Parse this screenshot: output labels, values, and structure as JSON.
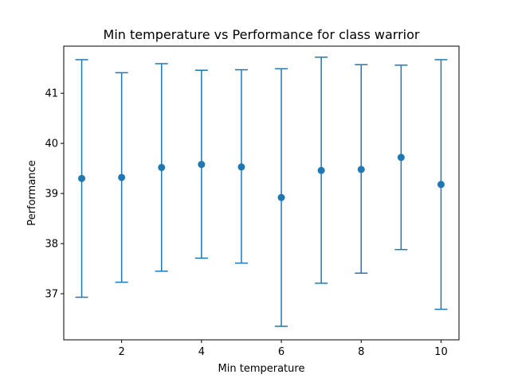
{
  "chart_data": {
    "type": "scatter",
    "title": "Min temperature vs Performance for class warrior",
    "xlabel": "Min temperature",
    "ylabel": "Performance",
    "x": [
      1,
      2,
      3,
      4,
      5,
      6,
      7,
      8,
      9,
      10
    ],
    "y": [
      39.3,
      39.32,
      39.52,
      39.58,
      39.53,
      38.92,
      39.46,
      39.48,
      39.72,
      39.18
    ],
    "yerr_low": [
      36.93,
      37.23,
      37.45,
      37.71,
      37.61,
      36.35,
      37.21,
      37.41,
      37.88,
      36.69
    ],
    "yerr_high": [
      41.67,
      41.41,
      41.59,
      41.46,
      41.47,
      41.49,
      41.72,
      41.57,
      41.56,
      41.67
    ],
    "xlim": [
      0.55,
      10.45
    ],
    "ylim": [
      36.08,
      41.94
    ],
    "xticks": [
      2,
      4,
      6,
      8,
      10
    ],
    "yticks": [
      37,
      38,
      39,
      40,
      41
    ],
    "grid": false,
    "marker_color": "#1f77b4"
  }
}
